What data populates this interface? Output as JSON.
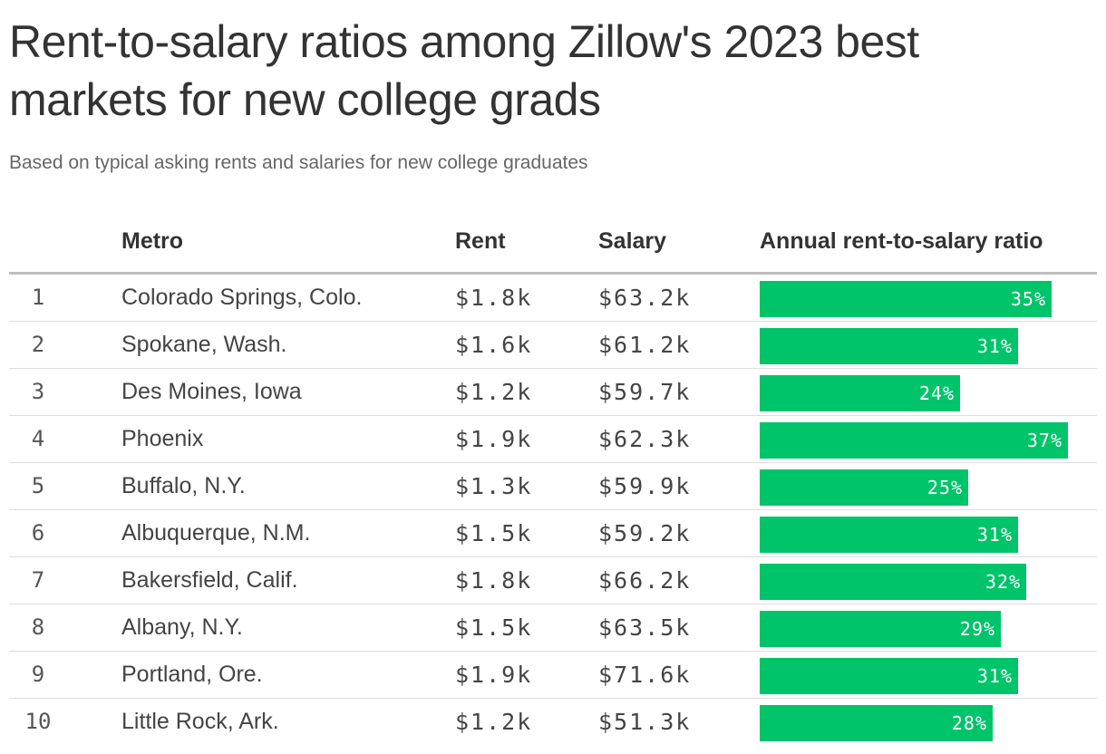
{
  "title": "Rent-to-salary ratios among Zillow's 2023 best markets for new college grads",
  "subtitle": "Based on typical asking rents and salaries for new college graduates",
  "colors": {
    "bar": "#00c46a"
  },
  "chart_data": {
    "type": "table",
    "title": "Rent-to-salary ratios among Zillow's 2023 best markets for new college grads",
    "subtitle": "Based on typical asking rents and salaries for new college graduates",
    "columns": [
      "",
      "Metro",
      "Rent",
      "Salary",
      "Annual rent-to-salary ratio"
    ],
    "rows": [
      {
        "rank": "1",
        "metro": "Colorado Springs, Colo.",
        "rent": "$1.8k",
        "salary": "$63.2k",
        "ratio": 35,
        "ratio_label": "35%"
      },
      {
        "rank": "2",
        "metro": "Spokane, Wash.",
        "rent": "$1.6k",
        "salary": "$61.2k",
        "ratio": 31,
        "ratio_label": "31%"
      },
      {
        "rank": "3",
        "metro": "Des Moines, Iowa",
        "rent": "$1.2k",
        "salary": "$59.7k",
        "ratio": 24,
        "ratio_label": "24%"
      },
      {
        "rank": "4",
        "metro": "Phoenix",
        "rent": "$1.9k",
        "salary": "$62.3k",
        "ratio": 37,
        "ratio_label": "37%"
      },
      {
        "rank": "5",
        "metro": "Buffalo, N.Y.",
        "rent": "$1.3k",
        "salary": "$59.9k",
        "ratio": 25,
        "ratio_label": "25%"
      },
      {
        "rank": "6",
        "metro": "Albuquerque, N.M.",
        "rent": "$1.5k",
        "salary": "$59.2k",
        "ratio": 31,
        "ratio_label": "31%"
      },
      {
        "rank": "7",
        "metro": "Bakersfield, Calif.",
        "rent": "$1.8k",
        "salary": "$66.2k",
        "ratio": 32,
        "ratio_label": "32%"
      },
      {
        "rank": "8",
        "metro": "Albany, N.Y.",
        "rent": "$1.5k",
        "salary": "$63.5k",
        "ratio": 29,
        "ratio_label": "29%"
      },
      {
        "rank": "9",
        "metro": "Portland, Ore.",
        "rent": "$1.9k",
        "salary": "$71.6k",
        "ratio": 31,
        "ratio_label": "31%"
      },
      {
        "rank": "10",
        "metro": "Little Rock, Ark.",
        "rent": "$1.2k",
        "salary": "$51.3k",
        "ratio": 28,
        "ratio_label": "28%"
      }
    ]
  }
}
